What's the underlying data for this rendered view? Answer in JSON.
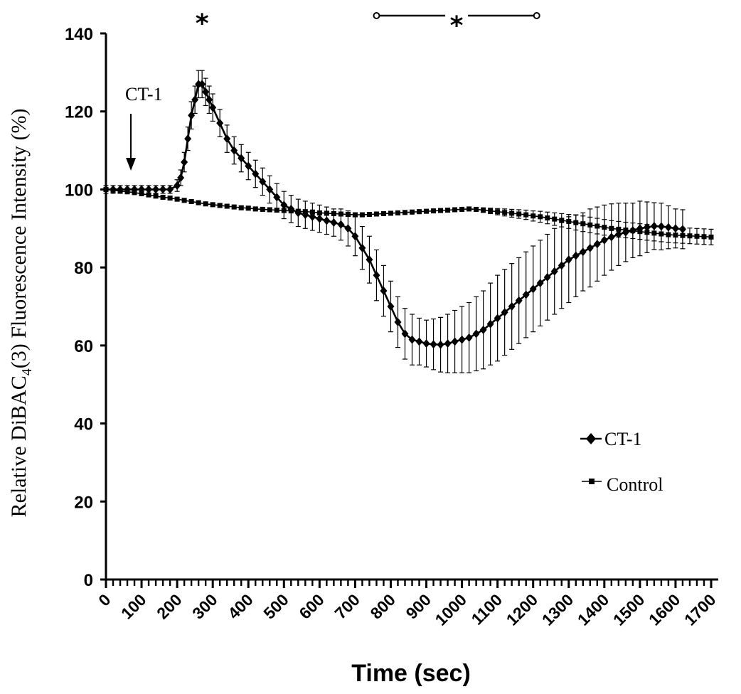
{
  "chart_data": {
    "type": "line",
    "xlabel": "Time (sec)",
    "ylabel_parts": [
      "Relative DiBAC",
      "4",
      "(3) Fluorescence Intensity (%)"
    ],
    "x_ticks": [
      "0",
      "100",
      "200",
      "300",
      "400",
      "500",
      "600",
      "700",
      "800",
      "900",
      "1000",
      "1100",
      "1200",
      "1300",
      "1400",
      "1500",
      "1600",
      "1700"
    ],
    "y_ticks": [
      "0",
      "20",
      "40",
      "60",
      "80",
      "100",
      "120",
      "140"
    ],
    "xlim": [
      0,
      1700
    ],
    "ylim": [
      0,
      140
    ],
    "legend": {
      "placement": "lower-right",
      "entries": [
        "CT-1",
        "Control"
      ]
    },
    "annotations": {
      "stimulus_label": "CT-1",
      "stimulus_time": 70,
      "significance_peak": {
        "symbol": "*",
        "x": 270
      },
      "significance_range": {
        "symbol": "*",
        "x_start": 760,
        "x_end": 1210
      }
    },
    "series": [
      {
        "name": "CT-1",
        "marker": "diamond",
        "x": [
          0,
          20,
          40,
          60,
          80,
          100,
          120,
          140,
          160,
          180,
          200,
          210,
          220,
          230,
          240,
          250,
          260,
          270,
          280,
          290,
          300,
          320,
          340,
          360,
          380,
          400,
          420,
          440,
          460,
          480,
          500,
          520,
          540,
          560,
          580,
          600,
          620,
          640,
          660,
          680,
          700,
          720,
          740,
          760,
          780,
          800,
          820,
          840,
          860,
          880,
          900,
          920,
          940,
          960,
          980,
          1000,
          1020,
          1040,
          1060,
          1080,
          1100,
          1120,
          1140,
          1160,
          1180,
          1200,
          1220,
          1240,
          1260,
          1280,
          1300,
          1320,
          1340,
          1360,
          1380,
          1400,
          1420,
          1440,
          1460,
          1480,
          1500,
          1520,
          1540,
          1560,
          1580,
          1600,
          1620
        ],
        "y": [
          100,
          100,
          100,
          100,
          100,
          100,
          100,
          100,
          100,
          100,
          101,
          103,
          107,
          113,
          119,
          123,
          127,
          127,
          125,
          123,
          121,
          117,
          113,
          110,
          108,
          106,
          104,
          102,
          100,
          98,
          96,
          95,
          94,
          93.5,
          93,
          92.5,
          92,
          91.5,
          91,
          90,
          88,
          85,
          82,
          78,
          74,
          70,
          66,
          63,
          61.5,
          61,
          60.5,
          60.3,
          60.2,
          60.5,
          61,
          61.5,
          62,
          63,
          64,
          65.5,
          67,
          68.5,
          70,
          71.5,
          73,
          74.5,
          76,
          77.5,
          79,
          80.5,
          82,
          83,
          84,
          85,
          86,
          87,
          87.8,
          88.5,
          89,
          89.5,
          90,
          90.3,
          90.6,
          90.5,
          90.3,
          90,
          89.8
        ],
        "error": [
          1,
          1,
          1,
          1,
          1,
          1,
          1,
          1,
          1,
          1,
          1.5,
          2,
          2.5,
          3,
          3.5,
          3.5,
          3.5,
          3.5,
          3.5,
          3.5,
          3.5,
          3.5,
          3.5,
          3.5,
          3.5,
          3.5,
          3.5,
          3.5,
          3.5,
          3.5,
          3.5,
          3.5,
          3.5,
          3.5,
          3.5,
          3.5,
          3.5,
          3.5,
          4,
          4.5,
          5,
          5.5,
          6,
          6.5,
          6.5,
          6.5,
          6.5,
          6.5,
          6.5,
          6,
          6,
          6.5,
          7,
          7.5,
          8,
          8.5,
          9,
          9.5,
          10,
          10.5,
          11,
          11,
          11,
          11,
          11,
          11,
          11,
          11,
          11,
          11,
          11,
          10.5,
          10,
          10,
          9.5,
          9,
          8.5,
          8,
          7.5,
          7,
          7,
          6.5,
          6,
          6,
          5.5,
          5,
          5
        ]
      },
      {
        "name": "Control",
        "marker": "square",
        "x": [
          0,
          20,
          40,
          60,
          80,
          100,
          120,
          140,
          160,
          180,
          200,
          220,
          240,
          260,
          280,
          300,
          320,
          340,
          360,
          380,
          400,
          420,
          440,
          460,
          480,
          500,
          520,
          540,
          560,
          580,
          600,
          620,
          640,
          660,
          680,
          700,
          720,
          740,
          760,
          780,
          800,
          820,
          840,
          860,
          880,
          900,
          920,
          940,
          960,
          980,
          1000,
          1020,
          1040,
          1060,
          1080,
          1100,
          1120,
          1140,
          1160,
          1180,
          1200,
          1220,
          1240,
          1260,
          1280,
          1300,
          1320,
          1340,
          1360,
          1380,
          1400,
          1420,
          1440,
          1460,
          1480,
          1500,
          1520,
          1540,
          1560,
          1580,
          1600,
          1620,
          1640,
          1660,
          1680,
          1700
        ],
        "y": [
          100,
          99.8,
          99.6,
          99.4,
          99.2,
          98.9,
          98.6,
          98.3,
          98,
          97.8,
          97.5,
          97.2,
          96.9,
          96.6,
          96.3,
          96.1,
          95.9,
          95.7,
          95.5,
          95.3,
          95.2,
          95,
          94.9,
          94.8,
          94.7,
          94.6,
          94.5,
          94.4,
          94.3,
          94.2,
          94,
          93.9,
          93.8,
          93.7,
          93.6,
          93.5,
          93.5,
          93.6,
          93.7,
          93.8,
          93.9,
          94,
          94.1,
          94.2,
          94.3,
          94.4,
          94.5,
          94.6,
          94.7,
          94.8,
          94.9,
          95,
          94.9,
          94.7,
          94.5,
          94.3,
          94.1,
          93.9,
          93.7,
          93.5,
          93.2,
          93,
          92.7,
          92.4,
          92.1,
          91.8,
          91.5,
          91.2,
          90.9,
          90.6,
          90.3,
          90,
          89.8,
          89.6,
          89.4,
          89.2,
          89,
          88.8,
          88.6,
          88.4,
          88.3,
          88.2,
          88.1,
          88,
          87.9,
          87.8
        ],
        "error": [
          0.5,
          0.5,
          0.5,
          0.5,
          0.5,
          0.5,
          0.5,
          0.5,
          0.5,
          0.5,
          0.5,
          0.5,
          0.5,
          0.5,
          0.5,
          0.5,
          0.5,
          0.5,
          0.5,
          0.5,
          0.5,
          0.5,
          0.5,
          0.5,
          0.5,
          0.5,
          0.5,
          0.5,
          0.5,
          0.5,
          0.5,
          0.5,
          0.5,
          0.5,
          0.5,
          0.5,
          0.5,
          0.5,
          0.5,
          0.5,
          0.5,
          0.5,
          0.5,
          0.5,
          0.5,
          0.5,
          0.5,
          0.5,
          0.5,
          0.5,
          0.5,
          0.5,
          0.5,
          0.6,
          0.7,
          0.8,
          0.9,
          1,
          1.1,
          1.2,
          1.3,
          1.4,
          1.5,
          1.6,
          1.7,
          1.8,
          1.9,
          2,
          2,
          2,
          2,
          2,
          2,
          2,
          2,
          2,
          2,
          2,
          2,
          2,
          2,
          2,
          2,
          2,
          2,
          2
        ]
      }
    ]
  }
}
